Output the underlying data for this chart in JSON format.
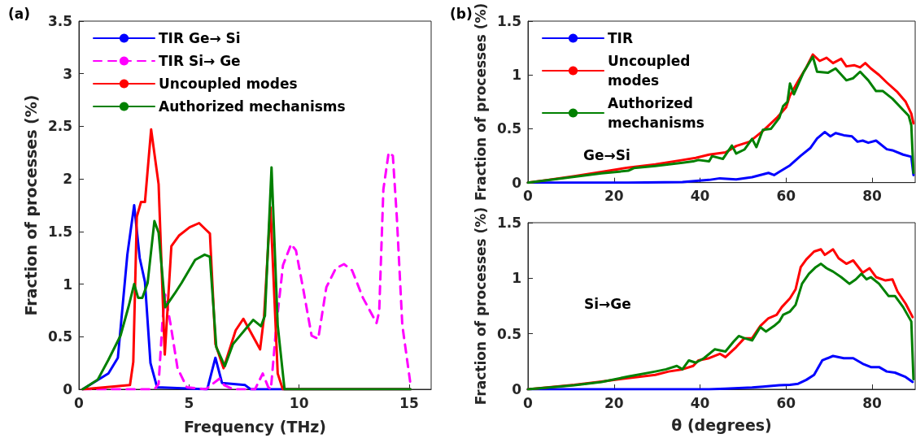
{
  "chart_data": [
    {
      "type": "line",
      "xlabel": "Frequency (THz)",
      "ylabel": "Fraction of processes (%)",
      "annotations": [
        "(a)"
      ],
      "xlim": [
        0,
        16
      ],
      "xticks": [
        0,
        5,
        10,
        15
      ],
      "ylim": [
        0,
        3.5
      ],
      "yticks": [
        0,
        0.5,
        1,
        1.5,
        2,
        2.5,
        3,
        3.5
      ],
      "grid": false,
      "legend": "top left",
      "marker": "none",
      "series": [
        {
          "name": "TIR Ge→ Si",
          "color": "#0000ff",
          "line_style": "solid",
          "x": [
            0.17,
            1.34,
            1.77,
            2.02,
            2.2,
            2.51,
            2.76,
            3.0,
            3.25,
            3.55,
            5.83,
            6.2,
            6.5,
            7.55,
            7.8,
            15.06
          ],
          "values": [
            0,
            0.15,
            0.3,
            0.87,
            1.28,
            1.75,
            1.25,
            1.02,
            0.25,
            0.02,
            0,
            0.3,
            0.06,
            0.04,
            0,
            0
          ]
        },
        {
          "name": "TIR Si→ Ge",
          "color": "#ff00ff",
          "line_style": "dashed",
          "x": [
            0.17,
            3.43,
            3.62,
            3.8,
            3.92,
            4.17,
            4.48,
            4.9,
            5.76,
            6.38,
            6.6,
            7.0,
            8.0,
            8.35,
            8.6,
            8.72,
            8.97,
            9.27,
            9.64,
            9.86,
            10.2,
            10.57,
            10.87,
            11.24,
            11.67,
            12.04,
            12.41,
            12.9,
            13.52,
            13.64,
            13.83,
            14.07,
            14.26,
            14.44,
            14.69,
            15.06
          ],
          "values": [
            0,
            0,
            0.05,
            0.66,
            0.9,
            0.61,
            0.2,
            0.02,
            0,
            0.1,
            0.04,
            0,
            0,
            0.15,
            0.02,
            0,
            0.61,
            1.18,
            1.38,
            1.32,
            0.94,
            0.51,
            0.48,
            0.97,
            1.15,
            1.19,
            1.13,
            0.87,
            0.63,
            0.74,
            1.9,
            2.25,
            2.22,
            1.64,
            0.61,
            0.05
          ]
        },
        {
          "name": "Uncoupled modes",
          "color": "#ff0000",
          "line_style": "solid",
          "x": [
            0.17,
            2.32,
            2.47,
            2.63,
            2.82,
            3.0,
            3.28,
            3.62,
            3.9,
            4.2,
            4.54,
            5.03,
            5.46,
            5.95,
            6.2,
            6.57,
            7.12,
            7.47,
            8.23,
            8.41,
            8.7,
            9.03,
            9.26,
            15.06
          ],
          "values": [
            0,
            0.04,
            0.26,
            1.64,
            1.78,
            1.78,
            2.47,
            1.95,
            0.33,
            1.36,
            1.46,
            1.54,
            1.58,
            1.48,
            0.43,
            0.2,
            0.56,
            0.67,
            0.38,
            0.69,
            1.73,
            0.15,
            0,
            0
          ]
        },
        {
          "name": "Authorized mechanisms",
          "color": "#008000",
          "line_style": "solid",
          "x": [
            0.17,
            0.85,
            1.34,
            1.89,
            2.26,
            2.51,
            2.69,
            2.88,
            3.12,
            3.43,
            3.62,
            3.92,
            4.35,
            4.66,
            5.28,
            5.71,
            5.95,
            6.24,
            6.63,
            7.0,
            7.92,
            8.27,
            8.45,
            8.75,
            9.03,
            9.34,
            15.06
          ],
          "values": [
            0,
            0.09,
            0.28,
            0.51,
            0.79,
            1.0,
            0.87,
            0.87,
            1.01,
            1.6,
            1.49,
            0.78,
            0.91,
            1.01,
            1.23,
            1.28,
            1.26,
            0.4,
            0.22,
            0.43,
            0.66,
            0.6,
            0.7,
            2.11,
            0.61,
            0,
            0
          ]
        }
      ]
    },
    {
      "type": "line",
      "ylabel": "Fraction of processes (%)",
      "annotations": [
        "(b)",
        "Ge→Si"
      ],
      "xlim": [
        0,
        90
      ],
      "xticks": [
        0,
        20,
        40,
        60,
        80
      ],
      "ylim": [
        0,
        1.5
      ],
      "yticks": [
        0,
        0.5,
        1,
        1.5
      ],
      "grid": false,
      "legend": "top left",
      "marker": "none",
      "series": [
        {
          "name": "TIR",
          "color": "#0000ff",
          "line_style": "solid",
          "x": [
            0,
            23.3,
            35.9,
            42.1,
            44.6,
            48.4,
            52.1,
            55.9,
            57.2,
            58.4,
            60.9,
            63.4,
            65.6,
            67.2,
            69,
            70.3,
            71.5,
            73.4,
            75.3,
            76.6,
            77.8,
            79.1,
            80.9,
            83.4,
            84.7,
            87.2,
            89.1,
            89.6
          ],
          "values": [
            0,
            0,
            0.005,
            0.025,
            0.04,
            0.03,
            0.05,
            0.09,
            0.07,
            0.1,
            0.16,
            0.25,
            0.32,
            0.41,
            0.47,
            0.43,
            0.46,
            0.44,
            0.43,
            0.38,
            0.39,
            0.37,
            0.39,
            0.31,
            0.3,
            0.26,
            0.24,
            0.07
          ]
        },
        {
          "name": "Uncoupled modes",
          "color": "#ff0000",
          "line_style": "solid",
          "x": [
            0,
            4.6,
            10.8,
            17.1,
            23.3,
            29.6,
            35.9,
            39,
            42.1,
            45.9,
            48.4,
            51.5,
            54.6,
            57.8,
            60,
            60.9,
            62.9,
            64.7,
            66.2,
            67.8,
            69.4,
            70.9,
            72.8,
            74,
            75.9,
            77.2,
            78.4,
            79.7,
            81.6,
            83.4,
            85.9,
            87.8,
            89.1,
            89.6
          ],
          "values": [
            0,
            0.025,
            0.06,
            0.1,
            0.14,
            0.17,
            0.21,
            0.23,
            0.26,
            0.28,
            0.34,
            0.38,
            0.48,
            0.6,
            0.7,
            0.81,
            0.95,
            1.07,
            1.19,
            1.13,
            1.16,
            1.11,
            1.15,
            1.08,
            1.09,
            1.07,
            1.11,
            1.06,
            1.0,
            0.93,
            0.84,
            0.75,
            0.64,
            0.55
          ]
        },
        {
          "name": "Authorized mechanisms",
          "color": "#008000",
          "line_style": "solid",
          "x": [
            0,
            10.8,
            17.1,
            23.3,
            24.6,
            29.6,
            35.9,
            38.4,
            39.6,
            42.1,
            42.8,
            45.3,
            47.4,
            48.4,
            50.3,
            52.1,
            53.1,
            54.6,
            56.5,
            58.4,
            59.3,
            60.3,
            60.9,
            61.8,
            64,
            66.2,
            67.2,
            69.7,
            71.5,
            74,
            75.6,
            77.2,
            79.1,
            80.9,
            82.5,
            84.7,
            86.6,
            88.5,
            89.1,
            89.6
          ],
          "values": [
            0,
            0.054,
            0.086,
            0.11,
            0.135,
            0.155,
            0.185,
            0.197,
            0.21,
            0.197,
            0.246,
            0.22,
            0.344,
            0.27,
            0.307,
            0.406,
            0.33,
            0.49,
            0.5,
            0.6,
            0.71,
            0.75,
            0.92,
            0.82,
            1.02,
            1.17,
            1.03,
            1.02,
            1.06,
            0.95,
            0.97,
            1.03,
            0.95,
            0.85,
            0.85,
            0.78,
            0.7,
            0.62,
            0.53,
            0.09
          ]
        }
      ]
    },
    {
      "type": "line",
      "xlabel": "θ (degrees)",
      "ylabel": "Fraction of processes (%)",
      "annotations": [
        "Si→Ge"
      ],
      "xlim": [
        0,
        90
      ],
      "xticks": [
        0,
        20,
        40,
        60,
        80
      ],
      "ylim": [
        0,
        1.5
      ],
      "yticks": [
        0,
        0.5,
        1,
        1.5
      ],
      "grid": false,
      "marker": "none",
      "series": [
        {
          "color": "#0000ff",
          "line_style": "solid",
          "x": [
            0,
            42.1,
            45.9,
            52.1,
            54.6,
            58.4,
            60.9,
            62.8,
            64.7,
            66.5,
            68.4,
            70.9,
            73.4,
            75.6,
            77.8,
            79.7,
            81.6,
            83.4,
            85.3,
            87.8,
            89.4
          ],
          "values": [
            0,
            0,
            0.005,
            0.017,
            0.024,
            0.037,
            0.04,
            0.05,
            0.085,
            0.13,
            0.26,
            0.3,
            0.28,
            0.28,
            0.23,
            0.2,
            0.2,
            0.16,
            0.15,
            0.11,
            0.066
          ]
        },
        {
          "color": "#ff0000",
          "line_style": "solid",
          "x": [
            0,
            10.8,
            17.1,
            23.3,
            29.6,
            32.7,
            35.9,
            38.4,
            39.6,
            42.1,
            44.6,
            45.9,
            48.4,
            50.3,
            52.1,
            54,
            55.9,
            57.8,
            59,
            60.9,
            62.2,
            63.4,
            64.7,
            66.5,
            68.1,
            69,
            70.9,
            72.2,
            74,
            75.6,
            77.8,
            79.4,
            80.9,
            83.1,
            84.7,
            85.9,
            87.8,
            89.4
          ],
          "values": [
            0,
            0.04,
            0.07,
            0.1,
            0.13,
            0.16,
            0.18,
            0.21,
            0.26,
            0.28,
            0.32,
            0.29,
            0.38,
            0.46,
            0.46,
            0.57,
            0.64,
            0.67,
            0.74,
            0.82,
            0.9,
            1.1,
            1.17,
            1.24,
            1.26,
            1.21,
            1.26,
            1.18,
            1.13,
            1.16,
            1.05,
            1.09,
            1.01,
            0.98,
            0.99,
            0.88,
            0.77,
            0.65
          ]
        },
        {
          "color": "#008000",
          "line_style": "solid",
          "x": [
            0,
            10.8,
            17.1,
            23.3,
            29.6,
            32.1,
            34.6,
            35.9,
            37.4,
            39,
            40.9,
            43.4,
            45.9,
            47.8,
            49,
            50.3,
            52.1,
            54,
            55.3,
            57.2,
            58.4,
            59.3,
            60.9,
            62.2,
            63.7,
            65.3,
            66.9,
            68.1,
            69.4,
            70.9,
            72.8,
            74.7,
            76.2,
            77.5,
            78.7,
            79.7,
            81.6,
            83.8,
            85.3,
            87.2,
            89.1,
            89.6
          ],
          "values": [
            0,
            0.037,
            0.066,
            0.115,
            0.16,
            0.18,
            0.21,
            0.18,
            0.26,
            0.24,
            0.28,
            0.36,
            0.34,
            0.43,
            0.48,
            0.46,
            0.44,
            0.56,
            0.52,
            0.57,
            0.61,
            0.67,
            0.7,
            0.76,
            0.95,
            1.04,
            1.1,
            1.13,
            1.09,
            1.06,
            1.01,
            0.95,
            0.99,
            1.04,
            0.99,
            1.01,
            0.95,
            0.84,
            0.84,
            0.74,
            0.61,
            0.09
          ]
        }
      ]
    }
  ]
}
